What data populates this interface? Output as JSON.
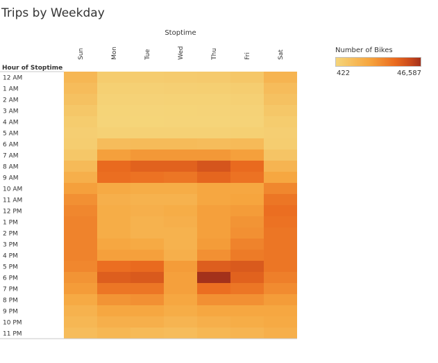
{
  "title": "Trips by Weekday",
  "column_group_title": "Stoptime",
  "row_header": "Hour of Stoptime",
  "legend": {
    "title": "Number of Bikes",
    "min_label": "422",
    "max_label": "46,587",
    "colors": [
      "#f5d57a",
      "#f6a53e",
      "#ea6b1f",
      "#c9491c",
      "#a3311b"
    ]
  },
  "chart_data": {
    "type": "heatmap",
    "title": "Trips by Weekday",
    "xlabel": "Stoptime",
    "ylabel": "Hour of Stoptime",
    "x": [
      "Sun",
      "Mon",
      "Tue",
      "Wed",
      "Thu",
      "Fri",
      "Sat"
    ],
    "y": [
      "12 AM",
      "1 AM",
      "2 AM",
      "3 AM",
      "4 AM",
      "5 AM",
      "6 AM",
      "7 AM",
      "8 AM",
      "9 AM",
      "10 AM",
      "11 AM",
      "12 PM",
      "1 PM",
      "2 PM",
      "3 PM",
      "4 PM",
      "5 PM",
      "6 PM",
      "7 PM",
      "8 PM",
      "9 PM",
      "10 PM",
      "11 PM"
    ],
    "color_range": [
      422,
      46587
    ],
    "values": [
      [
        12000,
        4000,
        3800,
        4200,
        4500,
        6000,
        13000
      ],
      [
        10000,
        2500,
        2300,
        2600,
        2800,
        3500,
        10000
      ],
      [
        8000,
        1500,
        1400,
        1600,
        1700,
        2200,
        8000
      ],
      [
        6000,
        900,
        800,
        900,
        1000,
        1400,
        6000
      ],
      [
        4000,
        700,
        600,
        700,
        800,
        1000,
        4000
      ],
      [
        3000,
        2000,
        1900,
        2000,
        2100,
        2500,
        3000
      ],
      [
        3500,
        10000,
        10500,
        10500,
        10000,
        11000,
        3500
      ],
      [
        6000,
        20000,
        22000,
        22000,
        22000,
        20000,
        7000
      ],
      [
        11000,
        33000,
        35000,
        35000,
        38000,
        33000,
        13000
      ],
      [
        15000,
        32000,
        31000,
        30000,
        34000,
        31000,
        18000
      ],
      [
        20000,
        17000,
        16000,
        16000,
        18000,
        18000,
        26000
      ],
      [
        24000,
        15000,
        14000,
        14000,
        18000,
        19000,
        30000
      ],
      [
        26000,
        16000,
        15000,
        16000,
        20000,
        21000,
        32000
      ],
      [
        27000,
        16000,
        14000,
        15000,
        20000,
        23000,
        31000
      ],
      [
        27000,
        16000,
        14000,
        14000,
        20000,
        24000,
        30000
      ],
      [
        27000,
        18000,
        17000,
        14000,
        21000,
        27000,
        30000
      ],
      [
        27000,
        20000,
        20000,
        15000,
        24000,
        29000,
        30000
      ],
      [
        26000,
        32000,
        33000,
        21000,
        36000,
        37000,
        30000
      ],
      [
        23000,
        36000,
        37000,
        20000,
        46587,
        35000,
        28000
      ],
      [
        21000,
        30000,
        30000,
        20000,
        32000,
        30000,
        25000
      ],
      [
        17000,
        23000,
        24000,
        18000,
        24000,
        24000,
        21000
      ],
      [
        14000,
        18000,
        18000,
        16000,
        18000,
        18000,
        18000
      ],
      [
        12000,
        15000,
        15000,
        13000,
        15000,
        16000,
        17000
      ],
      [
        10000,
        12000,
        11000,
        10000,
        12000,
        13000,
        15000
      ]
    ],
    "grid": false,
    "legend_position": "top-right"
  }
}
